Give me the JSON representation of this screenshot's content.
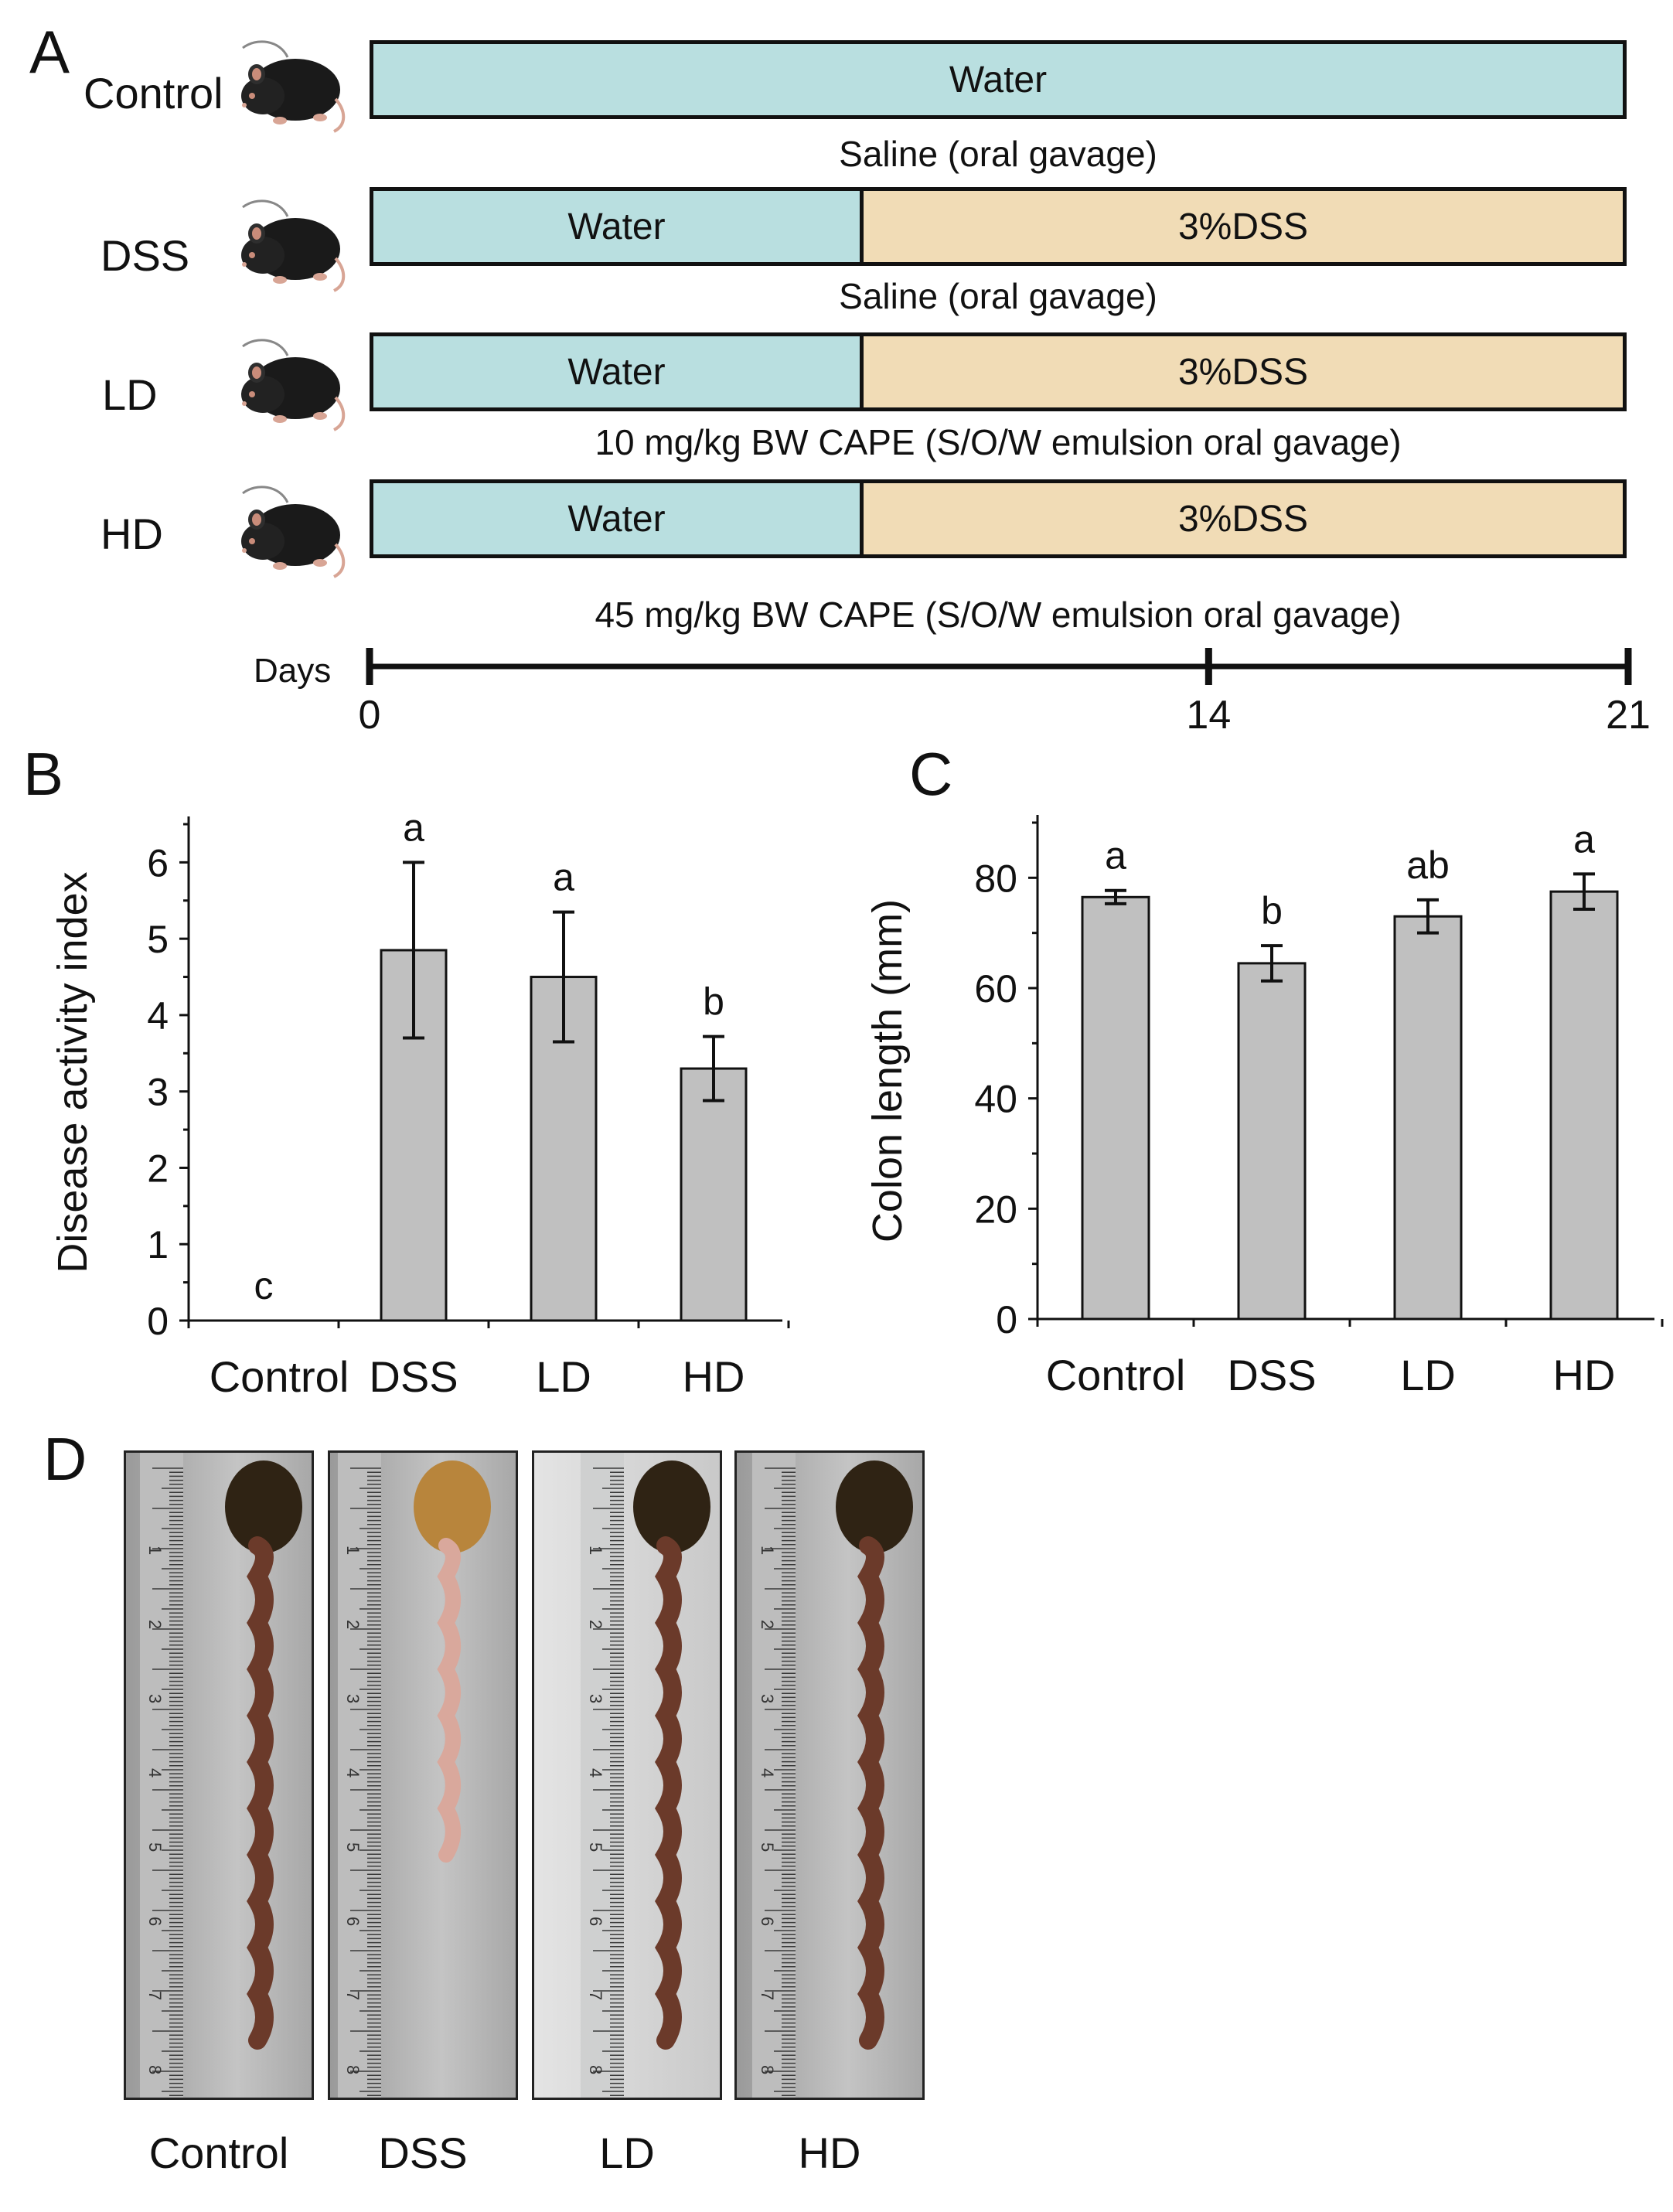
{
  "panels": {
    "a": "A",
    "b": "B",
    "c": "C",
    "d": "D"
  },
  "panelA": {
    "groups": [
      {
        "name": "Control",
        "water_label": "Water",
        "dss_label": "",
        "treatment": "Saline (oral gavage)"
      },
      {
        "name": "DSS",
        "water_label": "Water",
        "dss_label": "3%DSS",
        "treatment": "Saline (oral gavage)"
      },
      {
        "name": "LD",
        "water_label": "Water",
        "dss_label": "3%DSS",
        "treatment": "10 mg/kg BW CAPE (S/O/W emulsion oral gavage)"
      },
      {
        "name": "HD",
        "water_label": "Water",
        "dss_label": "3%DSS",
        "treatment": "45 mg/kg BW CAPE (S/O/W emulsion oral gavage)"
      }
    ],
    "timeline": {
      "label": "Days",
      "ticks": [
        "0",
        "14",
        "21"
      ],
      "values": [
        0,
        14,
        21
      ]
    },
    "colors": {
      "water": "#b9dfe0",
      "dss": "#f1dcb6"
    }
  },
  "chart_data": [
    {
      "type": "bar",
      "title": "",
      "xlabel": "",
      "ylabel": "Disease activity index",
      "categories": [
        "Control",
        "DSS",
        "LD",
        "HD"
      ],
      "values": [
        0,
        4.85,
        4.5,
        3.3
      ],
      "errors": [
        0,
        1.15,
        0.85,
        0.42
      ],
      "significance": [
        "c",
        "a",
        "a",
        "b"
      ],
      "ylim": [
        0,
        6.5
      ],
      "yticks": [
        0,
        1,
        2,
        3,
        4,
        5,
        6
      ],
      "bar_color": "#c0c0c0"
    },
    {
      "type": "bar",
      "title": "",
      "xlabel": "",
      "ylabel": "Colon length (mm)",
      "categories": [
        "Control",
        "DSS",
        "LD",
        "HD"
      ],
      "values": [
        76.5,
        64.5,
        73,
        77.5
      ],
      "errors": [
        1.2,
        3.2,
        3.0,
        3.2
      ],
      "significance": [
        "a",
        "b",
        "ab",
        "a"
      ],
      "ylim": [
        0,
        90
      ],
      "yticks": [
        0,
        20,
        40,
        60,
        80
      ],
      "bar_color": "#c0c0c0"
    }
  ],
  "panelD": {
    "labels": [
      "Control",
      "DSS",
      "LD",
      "HD"
    ],
    "ruler_numbers": [
      "1",
      "2",
      "3",
      "4",
      "5",
      "6",
      "7",
      "8"
    ]
  }
}
